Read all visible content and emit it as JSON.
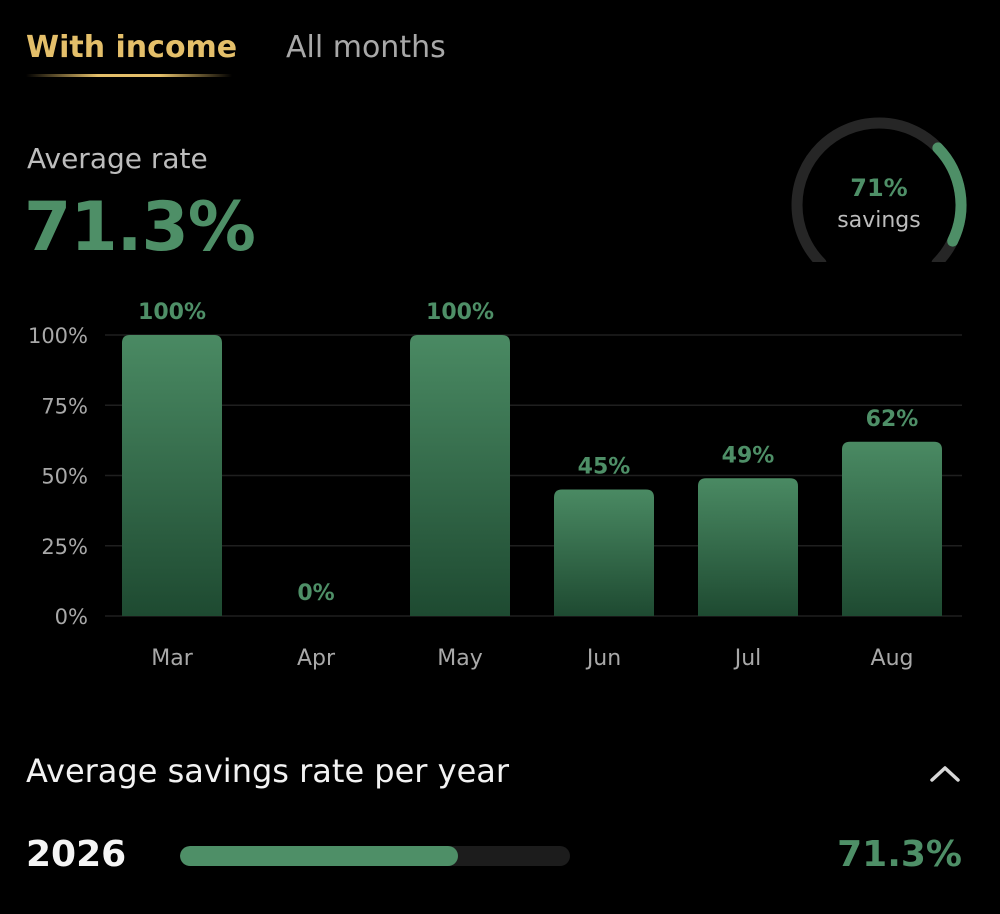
{
  "tabs": [
    {
      "label": "With income",
      "active": true
    },
    {
      "label": "All months",
      "active": false
    }
  ],
  "summary": {
    "label": "Average rate",
    "value": "71.3%"
  },
  "gauge": {
    "value_label": "71%",
    "sub_label": "savings",
    "fraction": 0.71
  },
  "colors": {
    "accent_green": "#4e8f67",
    "gold": "#e4bf6a",
    "background": "#000000"
  },
  "chart_data": {
    "type": "bar",
    "categories": [
      "Mar",
      "Apr",
      "May",
      "Jun",
      "Jul",
      "Aug"
    ],
    "values": [
      100,
      0,
      100,
      45,
      49,
      62
    ],
    "data_labels": [
      "100%",
      "0%",
      "100%",
      "45%",
      "49%",
      "62%"
    ],
    "ylim": [
      0,
      100
    ],
    "yticks": [
      0,
      25,
      50,
      75,
      100
    ],
    "ytick_labels": [
      "0%",
      "25%",
      "50%",
      "75%",
      "100%"
    ],
    "grid": true,
    "title": "",
    "xlabel": "",
    "ylabel": ""
  },
  "yearly": {
    "title": "Average savings rate per year",
    "collapse_icon": "chevron-up-icon",
    "rows": [
      {
        "year": "2026",
        "value": "71.3%",
        "fraction": 0.713
      }
    ]
  }
}
